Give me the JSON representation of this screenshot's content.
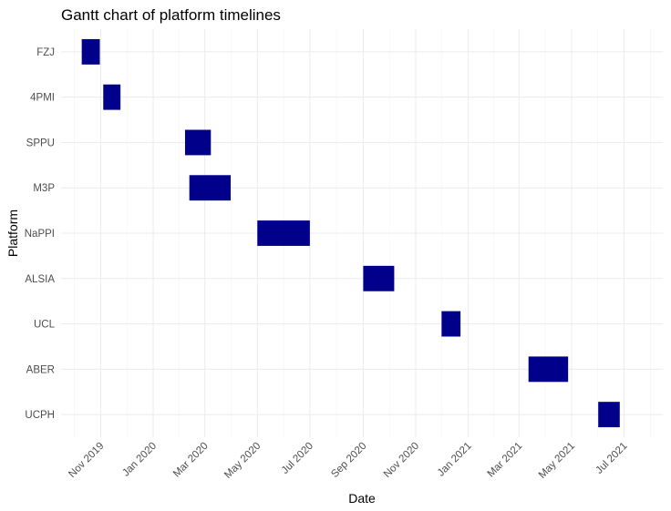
{
  "chart_data": {
    "type": "gantt",
    "title": "Gantt chart of platform timelines",
    "xlabel": "Date",
    "ylabel": "Platform",
    "xlim": [
      "2019-09-16",
      "2021-08-15"
    ],
    "x_ticks": [
      {
        "date": "2019-11-01",
        "label": "Nov 2019"
      },
      {
        "date": "2020-01-01",
        "label": "Jan 2020"
      },
      {
        "date": "2020-03-01",
        "label": "Mar 2020"
      },
      {
        "date": "2020-05-01",
        "label": "May 2020"
      },
      {
        "date": "2020-07-01",
        "label": "Jul 2020"
      },
      {
        "date": "2020-09-01",
        "label": "Sep 2020"
      },
      {
        "date": "2020-11-01",
        "label": "Nov 2020"
      },
      {
        "date": "2021-01-01",
        "label": "Jan 2021"
      },
      {
        "date": "2021-03-01",
        "label": "Mar 2021"
      },
      {
        "date": "2021-05-01",
        "label": "May 2021"
      },
      {
        "date": "2021-07-01",
        "label": "Jul 2021"
      }
    ],
    "platforms": [
      {
        "name": "FZJ",
        "start": "2019-10-10",
        "end": "2019-10-31"
      },
      {
        "name": "4PMI",
        "start": "2019-11-04",
        "end": "2019-11-24"
      },
      {
        "name": "SPPU",
        "start": "2020-02-07",
        "end": "2020-03-08"
      },
      {
        "name": "M3P",
        "start": "2020-02-12",
        "end": "2020-03-31"
      },
      {
        "name": "NaPPI",
        "start": "2020-05-01",
        "end": "2020-07-01"
      },
      {
        "name": "ALSIA",
        "start": "2020-09-01",
        "end": "2020-10-07"
      },
      {
        "name": "UCL",
        "start": "2020-12-01",
        "end": "2020-12-23"
      },
      {
        "name": "ABER",
        "start": "2021-03-12",
        "end": "2021-04-27"
      },
      {
        "name": "UCPH",
        "start": "2021-06-01",
        "end": "2021-06-26"
      }
    ],
    "bar_color": "#00008b",
    "grid": true,
    "legend": "none"
  }
}
